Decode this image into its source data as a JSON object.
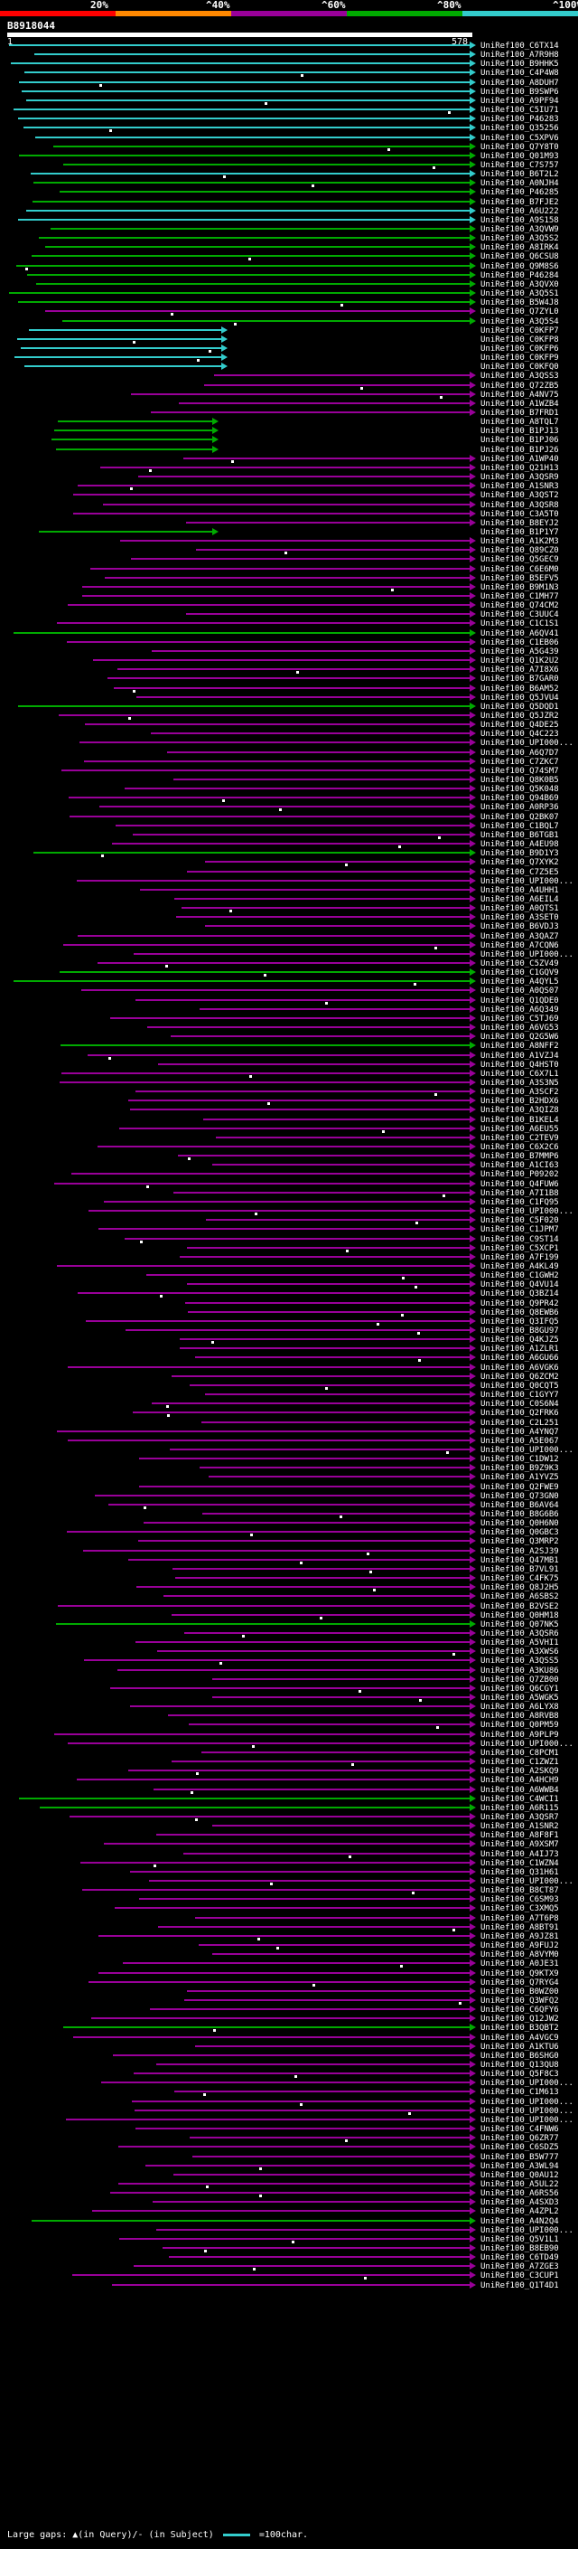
{
  "legend": {
    "items": [
      {
        "label": "20%",
        "color": "#ff0000"
      },
      {
        "label": "^40%",
        "color": "#ff8800"
      },
      {
        "label": "^60%",
        "color": "#990099"
      },
      {
        "label": "^80%",
        "color": "#00aa00"
      },
      {
        "label": "^100%",
        "color": "#33cccc"
      }
    ]
  },
  "query": {
    "id": "B8918044",
    "start": "1",
    "end": "578"
  },
  "footer": {
    "text": "Large gaps: ▲(in Query)/- (in Subject)",
    "scale": "=100char."
  },
  "hits": [
    {
      "label": "UniRef100_C6TX14",
      "color": "#33cccc"
    },
    {
      "label": "UniRef100_A7R9H8",
      "color": "#33cccc"
    },
    {
      "label": "UniRef100_B9HHK5",
      "color": "#33cccc"
    },
    {
      "label": "UniRef100_C4P4W8",
      "color": "#33cccc"
    },
    {
      "label": "UniRef100_A8DUH7",
      "color": "#33cccc"
    },
    {
      "label": "UniRef100_B9SWP6",
      "color": "#33cccc"
    },
    {
      "label": "UniRef100_A9PF94",
      "color": "#33cccc"
    },
    {
      "label": "UniRef100_C5IU71",
      "color": "#33cccc"
    },
    {
      "label": "UniRef100_P46283",
      "color": "#33cccc"
    },
    {
      "label": "UniRef100_Q35256",
      "color": "#33cccc"
    },
    {
      "label": "UniRef100_C5XPV6",
      "color": "#33cccc"
    },
    {
      "label": "UniRef100_Q7Y8T0",
      "color": "#00aa00"
    },
    {
      "label": "UniRef100_Q01M93",
      "color": "#00aa00"
    },
    {
      "label": "UniRef100_C7S757",
      "color": "#00aa00"
    },
    {
      "label": "UniRef100_B6T2L2",
      "color": "#33cccc"
    },
    {
      "label": "UniRef100_A0NJH4",
      "color": "#00aa00"
    },
    {
      "label": "UniRef100_P46285",
      "color": "#00aa00"
    },
    {
      "label": "UniRef100_B7FJE2",
      "color": "#00aa00"
    },
    {
      "label": "UniRef100_A6U222",
      "color": "#33cccc"
    },
    {
      "label": "UniRef100_A9S158",
      "color": "#33cccc"
    },
    {
      "label": "UniRef100_A3QVW9",
      "color": "#00aa00"
    },
    {
      "label": "UniRef100_A3Q5S2",
      "color": "#00aa00"
    },
    {
      "label": "UniRef100_A8IRK4",
      "color": "#00aa00"
    },
    {
      "label": "UniRef100_Q6CSU8",
      "color": "#00aa00"
    },
    {
      "label": "UniRef100_Q9M8S6",
      "color": "#00aa00"
    },
    {
      "label": "UniRef100_P46284",
      "color": "#00aa00"
    },
    {
      "label": "UniRef100_A3QVX0",
      "color": "#00aa00"
    },
    {
      "label": "UniRef100_A3Q5S1",
      "color": "#00aa00"
    },
    {
      "label": "UniRef100_B5W4J8",
      "color": "#00aa00"
    },
    {
      "label": "UniRef100_Q7ZYL0",
      "color": "#990099"
    },
    {
      "label": "UniRef100_A3Q5S4",
      "color": "#00aa00"
    },
    {
      "label": "UniRef100_C0KFP7",
      "color": "#33cccc"
    },
    {
      "label": "UniRef100_C0KFP8",
      "color": "#33cccc"
    },
    {
      "label": "UniRef100_C0KFP6",
      "color": "#33cccc"
    },
    {
      "label": "UniRef100_C0KFP9",
      "color": "#33cccc"
    },
    {
      "label": "UniRef100_C0KFQ0",
      "color": "#33cccc"
    },
    {
      "label": "UniRef100_A3QSS3",
      "color": "#990099"
    },
    {
      "label": "UniRef100_Q72ZB5",
      "color": "#990099"
    },
    {
      "label": "UniRef100_A4NV75",
      "color": "#990099"
    },
    {
      "label": "UniRef100_A1WZB4",
      "color": "#990099"
    },
    {
      "label": "UniRef100_B7FRD1",
      "color": "#990099"
    },
    {
      "label": "UniRef100_A8TQL7",
      "color": "#00aa00"
    },
    {
      "label": "UniRef100_B1PJ13",
      "color": "#00aa00"
    },
    {
      "label": "UniRef100_B1PJ06",
      "color": "#00aa00"
    },
    {
      "label": "UniRef100_B1PJ26",
      "color": "#00aa00"
    },
    {
      "label": "UniRef100_A1WP40",
      "color": "#990099"
    },
    {
      "label": "UniRef100_Q21H13",
      "color": "#990099"
    },
    {
      "label": "UniRef100_A3QSR9",
      "color": "#990099"
    },
    {
      "label": "UniRef100_A1SNR3",
      "color": "#990099"
    },
    {
      "label": "UniRef100_A3QST2",
      "color": "#990099"
    },
    {
      "label": "UniRef100_A3QSR8",
      "color": "#990099"
    },
    {
      "label": "UniRef100_C3A5T0",
      "color": "#990099"
    },
    {
      "label": "UniRef100_B8EYJ2",
      "color": "#990099"
    },
    {
      "label": "UniRef100_B1P1Y7",
      "color": "#00aa00"
    },
    {
      "label": "UniRef100_A1K2M3",
      "color": "#990099"
    },
    {
      "label": "UniRef100_Q89CZ0",
      "color": "#990099"
    },
    {
      "label": "UniRef100_Q5GEC9",
      "color": "#990099"
    },
    {
      "label": "UniRef100_C6E6M0",
      "color": "#990099"
    },
    {
      "label": "UniRef100_B5EFV5",
      "color": "#990099"
    },
    {
      "label": "UniRef100_B9M1N3",
      "color": "#990099"
    },
    {
      "label": "UniRef100_C1MH77",
      "color": "#990099"
    },
    {
      "label": "UniRef100_Q74CM2",
      "color": "#990099"
    },
    {
      "label": "UniRef100_C3UUC4",
      "color": "#990099"
    },
    {
      "label": "UniRef100_C1C1S1",
      "color": "#990099"
    },
    {
      "label": "UniRef100_A6QV41",
      "color": "#00aa00"
    },
    {
      "label": "UniRef100_C1EB06",
      "color": "#990099"
    },
    {
      "label": "UniRef100_A5G439",
      "color": "#990099"
    },
    {
      "label": "UniRef100_Q1K2U2",
      "color": "#990099"
    },
    {
      "label": "UniRef100_A7I8X6",
      "color": "#990099"
    },
    {
      "label": "UniRef100_B7GAR0",
      "color": "#990099"
    },
    {
      "label": "UniRef100_B6AM52",
      "color": "#990099"
    },
    {
      "label": "UniRef100_Q5JVU4",
      "color": "#990099"
    },
    {
      "label": "UniRef100_Q5DQD1",
      "color": "#00aa00"
    },
    {
      "label": "UniRef100_Q5JZR2",
      "color": "#990099"
    },
    {
      "label": "UniRef100_Q4DE25",
      "color": "#990099"
    },
    {
      "label": "UniRef100_Q4C223",
      "color": "#990099"
    },
    {
      "label": "UniRef100_UPI000...",
      "color": "#990099"
    },
    {
      "label": "UniRef100_A6Q7D7",
      "color": "#990099"
    },
    {
      "label": "UniRef100_C7ZKC7",
      "color": "#990099"
    },
    {
      "label": "UniRef100_Q74SM7",
      "color": "#990099"
    },
    {
      "label": "UniRef100_Q8K0B5",
      "color": "#990099"
    },
    {
      "label": "UniRef100_Q5K048",
      "color": "#990099"
    },
    {
      "label": "UniRef100_Q94B69",
      "color": "#990099"
    },
    {
      "label": "UniRef100_A0RP36",
      "color": "#990099"
    },
    {
      "label": "UniRef100_Q2BK07",
      "color": "#990099"
    },
    {
      "label": "UniRef100_C1BQL7",
      "color": "#990099"
    },
    {
      "label": "UniRef100_B6TGB1",
      "color": "#990099"
    },
    {
      "label": "UniRef100_A4EU98",
      "color": "#990099"
    },
    {
      "label": "UniRef100_B9D1Y3",
      "color": "#00aa00"
    },
    {
      "label": "UniRef100_Q7XYK2",
      "color": "#990099"
    },
    {
      "label": "UniRef100_C7Z5E5",
      "color": "#990099"
    },
    {
      "label": "UniRef100_UPI000...",
      "color": "#990099"
    },
    {
      "label": "UniRef100_A4UHH1",
      "color": "#990099"
    },
    {
      "label": "UniRef100_A6EIL4",
      "color": "#990099"
    },
    {
      "label": "UniRef100_A0QTS1",
      "color": "#990099"
    },
    {
      "label": "UniRef100_A3SET0",
      "color": "#990099"
    },
    {
      "label": "UniRef100_B6VDJ3",
      "color": "#990099"
    },
    {
      "label": "UniRef100_A3QAZ7",
      "color": "#990099"
    },
    {
      "label": "UniRef100_A7CQN6",
      "color": "#990099"
    },
    {
      "label": "UniRef100_UPI000...",
      "color": "#990099"
    },
    {
      "label": "UniRef100_C5ZV49",
      "color": "#990099"
    },
    {
      "label": "UniRef100_C1GQV9",
      "color": "#00aa00"
    },
    {
      "label": "UniRef100_A4QYL5",
      "color": "#00aa00"
    },
    {
      "label": "UniRef100_A0QS07",
      "color": "#990099"
    },
    {
      "label": "UniRef100_Q1QDE0",
      "color": "#990099"
    },
    {
      "label": "UniRef100_A6Q349",
      "color": "#990099"
    },
    {
      "label": "UniRef100_C5TJ69",
      "color": "#990099"
    },
    {
      "label": "UniRef100_A6VG53",
      "color": "#990099"
    },
    {
      "label": "UniRef100_Q2G5W6",
      "color": "#990099"
    },
    {
      "label": "UniRef100_A8NFF2",
      "color": "#00aa00"
    },
    {
      "label": "UniRef100_A1VZJ4",
      "color": "#990099"
    },
    {
      "label": "UniRef100_Q4HST0",
      "color": "#990099"
    },
    {
      "label": "UniRef100_C6X7L1",
      "color": "#990099"
    },
    {
      "label": "UniRef100_A3S3N5",
      "color": "#990099"
    },
    {
      "label": "UniRef100_A3SCF2",
      "color": "#990099"
    },
    {
      "label": "UniRef100_B2HDX6",
      "color": "#990099"
    },
    {
      "label": "UniRef100_A3QIZ8",
      "color": "#990099"
    },
    {
      "label": "UniRef100_B1KEL4",
      "color": "#990099"
    },
    {
      "label": "UniRef100_A6EU55",
      "color": "#990099"
    },
    {
      "label": "UniRef100_C2TEV9",
      "color": "#990099"
    },
    {
      "label": "UniRef100_C6X2C6",
      "color": "#990099"
    },
    {
      "label": "UniRef100_B7MMP6",
      "color": "#990099"
    },
    {
      "label": "UniRef100_A1CI63",
      "color": "#990099"
    },
    {
      "label": "UniRef100_P09202",
      "color": "#990099"
    },
    {
      "label": "UniRef100_Q4FUW6",
      "color": "#990099"
    },
    {
      "label": "UniRef100_A7I1B8",
      "color": "#990099"
    },
    {
      "label": "UniRef100_C1FQ95",
      "color": "#990099"
    },
    {
      "label": "UniRef100_UPI000...",
      "color": "#990099"
    },
    {
      "label": "UniRef100_C5F020",
      "color": "#990099"
    },
    {
      "label": "UniRef100_C1JPM7",
      "color": "#990099"
    },
    {
      "label": "UniRef100_C9ST14",
      "color": "#990099"
    },
    {
      "label": "UniRef100_C5XCP1",
      "color": "#990099"
    },
    {
      "label": "UniRef100_A7F199",
      "color": "#990099"
    },
    {
      "label": "UniRef100_A4KL49",
      "color": "#990099"
    },
    {
      "label": "UniRef100_C1GWH2",
      "color": "#990099"
    },
    {
      "label": "UniRef100_Q4VU14",
      "color": "#990099"
    },
    {
      "label": "UniRef100_Q3BZ14",
      "color": "#990099"
    },
    {
      "label": "UniRef100_Q9PR42",
      "color": "#990099"
    },
    {
      "label": "UniRef100_Q8EWB6",
      "color": "#990099"
    },
    {
      "label": "UniRef100_Q3IFQ5",
      "color": "#990099"
    },
    {
      "label": "UniRef100_B8GU97",
      "color": "#990099"
    },
    {
      "label": "UniRef100_Q4KJZ5",
      "color": "#990099"
    },
    {
      "label": "UniRef100_A1ZLR1",
      "color": "#990099"
    },
    {
      "label": "UniRef100_A6GU66",
      "color": "#990099"
    },
    {
      "label": "UniRef100_A6VGK6",
      "color": "#990099"
    },
    {
      "label": "UniRef100_Q6ZCM2",
      "color": "#990099"
    },
    {
      "label": "UniRef100_Q0CQT5",
      "color": "#990099"
    },
    {
      "label": "UniRef100_C1GYY7",
      "color": "#990099"
    },
    {
      "label": "UniRef100_C0S6N4",
      "color": "#990099"
    },
    {
      "label": "UniRef100_Q2FRK6",
      "color": "#990099"
    },
    {
      "label": "UniRef100_C2L251",
      "color": "#990099"
    },
    {
      "label": "UniRef100_A4YNQ7",
      "color": "#990099"
    },
    {
      "label": "UniRef100_A5E067",
      "color": "#990099"
    },
    {
      "label": "UniRef100_UPI000...",
      "color": "#990099"
    },
    {
      "label": "UniRef100_C1DW12",
      "color": "#990099"
    },
    {
      "label": "UniRef100_B9Z9K3",
      "color": "#990099"
    },
    {
      "label": "UniRef100_A1YVZ5",
      "color": "#990099"
    },
    {
      "label": "UniRef100_Q2FWE9",
      "color": "#990099"
    },
    {
      "label": "UniRef100_Q73GN0",
      "color": "#990099"
    },
    {
      "label": "UniRef100_B6AV64",
      "color": "#990099"
    },
    {
      "label": "UniRef100_B8G6B6",
      "color": "#990099"
    },
    {
      "label": "UniRef100_Q0H6N0",
      "color": "#990099"
    },
    {
      "label": "UniRef100_Q0GBC3",
      "color": "#990099"
    },
    {
      "label": "UniRef100_Q3MRP2",
      "color": "#990099"
    },
    {
      "label": "UniRef100_A2SJ39",
      "color": "#990099"
    },
    {
      "label": "UniRef100_Q47MB1",
      "color": "#990099"
    },
    {
      "label": "UniRef100_B7VL91",
      "color": "#990099"
    },
    {
      "label": "UniRef100_C4FK75",
      "color": "#990099"
    },
    {
      "label": "UniRef100_Q8J2H5",
      "color": "#990099"
    },
    {
      "label": "UniRef100_A6SBS2",
      "color": "#990099"
    },
    {
      "label": "UniRef100_B2VSE2",
      "color": "#990099"
    },
    {
      "label": "UniRef100_Q0HM18",
      "color": "#990099"
    },
    {
      "label": "UniRef100_Q07NK5",
      "color": "#00aa00"
    },
    {
      "label": "UniRef100_A3QSR6",
      "color": "#990099"
    },
    {
      "label": "UniRef100_A5VHI1",
      "color": "#990099"
    },
    {
      "label": "UniRef100_A3XWS6",
      "color": "#990099"
    },
    {
      "label": "UniRef100_A3QSS5",
      "color": "#990099"
    },
    {
      "label": "UniRef100_A3KU86",
      "color": "#990099"
    },
    {
      "label": "UniRef100_Q7ZB00",
      "color": "#990099"
    },
    {
      "label": "UniRef100_Q6CGY1",
      "color": "#990099"
    },
    {
      "label": "UniRef100_A5WGK5",
      "color": "#990099"
    },
    {
      "label": "UniRef100_A6LYX8",
      "color": "#990099"
    },
    {
      "label": "UniRef100_A8RVB8",
      "color": "#990099"
    },
    {
      "label": "UniRef100_Q0PM59",
      "color": "#990099"
    },
    {
      "label": "UniRef100_A9PLP9",
      "color": "#990099"
    },
    {
      "label": "UniRef100_UPI000...",
      "color": "#990099"
    },
    {
      "label": "UniRef100_C8PCM1",
      "color": "#990099"
    },
    {
      "label": "UniRef100_C1ZWZ1",
      "color": "#990099"
    },
    {
      "label": "UniRef100_A2SKQ9",
      "color": "#990099"
    },
    {
      "label": "UniRef100_A4HCH9",
      "color": "#990099"
    },
    {
      "label": "UniRef100_A6WWB4",
      "color": "#990099"
    },
    {
      "label": "UniRef100_C4WCI1",
      "color": "#00aa00"
    },
    {
      "label": "UniRef100_A6R115",
      "color": "#00aa00"
    },
    {
      "label": "UniRef100_A3QSR7",
      "color": "#990099"
    },
    {
      "label": "UniRef100_A1SNR2",
      "color": "#990099"
    },
    {
      "label": "UniRef100_A8F8F1",
      "color": "#990099"
    },
    {
      "label": "UniRef100_A9XSM7",
      "color": "#990099"
    },
    {
      "label": "UniRef100_A4IJ73",
      "color": "#990099"
    },
    {
      "label": "UniRef100_C1WZN4",
      "color": "#990099"
    },
    {
      "label": "UniRef100_Q31H61",
      "color": "#990099"
    },
    {
      "label": "UniRef100_UPI000...",
      "color": "#990099"
    },
    {
      "label": "UniRef100_B8CT87",
      "color": "#990099"
    },
    {
      "label": "UniRef100_C6SM93",
      "color": "#990099"
    },
    {
      "label": "UniRef100_C3XMQ5",
      "color": "#990099"
    },
    {
      "label": "UniRef100_A7T6P8",
      "color": "#990099"
    },
    {
      "label": "UniRef100_A8BT91",
      "color": "#990099"
    },
    {
      "label": "UniRef100_A9JZ81",
      "color": "#990099"
    },
    {
      "label": "UniRef100_A9FUJ2",
      "color": "#990099"
    },
    {
      "label": "UniRef100_A8VYM0",
      "color": "#990099"
    },
    {
      "label": "UniRef100_A0JE31",
      "color": "#990099"
    },
    {
      "label": "UniRef100_Q9KTX9",
      "color": "#990099"
    },
    {
      "label": "UniRef100_Q7RYG4",
      "color": "#990099"
    },
    {
      "label": "UniRef100_B0WZ00",
      "color": "#990099"
    },
    {
      "label": "UniRef100_Q3WFQ2",
      "color": "#990099"
    },
    {
      "label": "UniRef100_C6QFY6",
      "color": "#990099"
    },
    {
      "label": "UniRef100_Q12JW2",
      "color": "#990099"
    },
    {
      "label": "UniRef100_B3QBT2",
      "color": "#00aa00"
    },
    {
      "label": "UniRef100_A4VGC9",
      "color": "#990099"
    },
    {
      "label": "UniRef100_A1KTU6",
      "color": "#990099"
    },
    {
      "label": "UniRef100_B6SHG0",
      "color": "#990099"
    },
    {
      "label": "UniRef100_Q13QU8",
      "color": "#990099"
    },
    {
      "label": "UniRef100_Q5F8C3",
      "color": "#990099"
    },
    {
      "label": "UniRef100_UPI000...",
      "color": "#990099"
    },
    {
      "label": "UniRef100_C1M613",
      "color": "#990099"
    },
    {
      "label": "UniRef100_UPI000...",
      "color": "#990099"
    },
    {
      "label": "UniRef100_UPI000...",
      "color": "#990099"
    },
    {
      "label": "UniRef100_UPI000...",
      "color": "#990099"
    },
    {
      "label": "UniRef100_C4FNW6",
      "color": "#990099"
    },
    {
      "label": "UniRef100_Q6ZR77",
      "color": "#990099"
    },
    {
      "label": "UniRef100_C6SDZ5",
      "color": "#990099"
    },
    {
      "label": "UniRef100_B5W777",
      "color": "#990099"
    },
    {
      "label": "UniRef100_A3WL94",
      "color": "#990099"
    },
    {
      "label": "UniRef100_Q0AU12",
      "color": "#990099"
    },
    {
      "label": "UniRef100_A5UL22",
      "color": "#990099"
    },
    {
      "label": "UniRef100_A6RS56",
      "color": "#990099"
    },
    {
      "label": "UniRef100_A4SXD3",
      "color": "#990099"
    },
    {
      "label": "UniRef100_A4ZPL2",
      "color": "#990099"
    },
    {
      "label": "UniRef100_A4N2Q4",
      "color": "#00aa00"
    },
    {
      "label": "UniRef100_UPI000...",
      "color": "#990099"
    },
    {
      "label": "UniRef100_Q5V1L1",
      "color": "#990099"
    },
    {
      "label": "UniRef100_B8EB90",
      "color": "#990099"
    },
    {
      "label": "UniRef100_C6TD49",
      "color": "#990099"
    },
    {
      "label": "UniRef100_A7ZGE3",
      "color": "#990099"
    },
    {
      "label": "UniRef100_C3CUP1",
      "color": "#990099"
    },
    {
      "label": "UniRef100_Q1T4D1",
      "color": "#990099"
    }
  ]
}
